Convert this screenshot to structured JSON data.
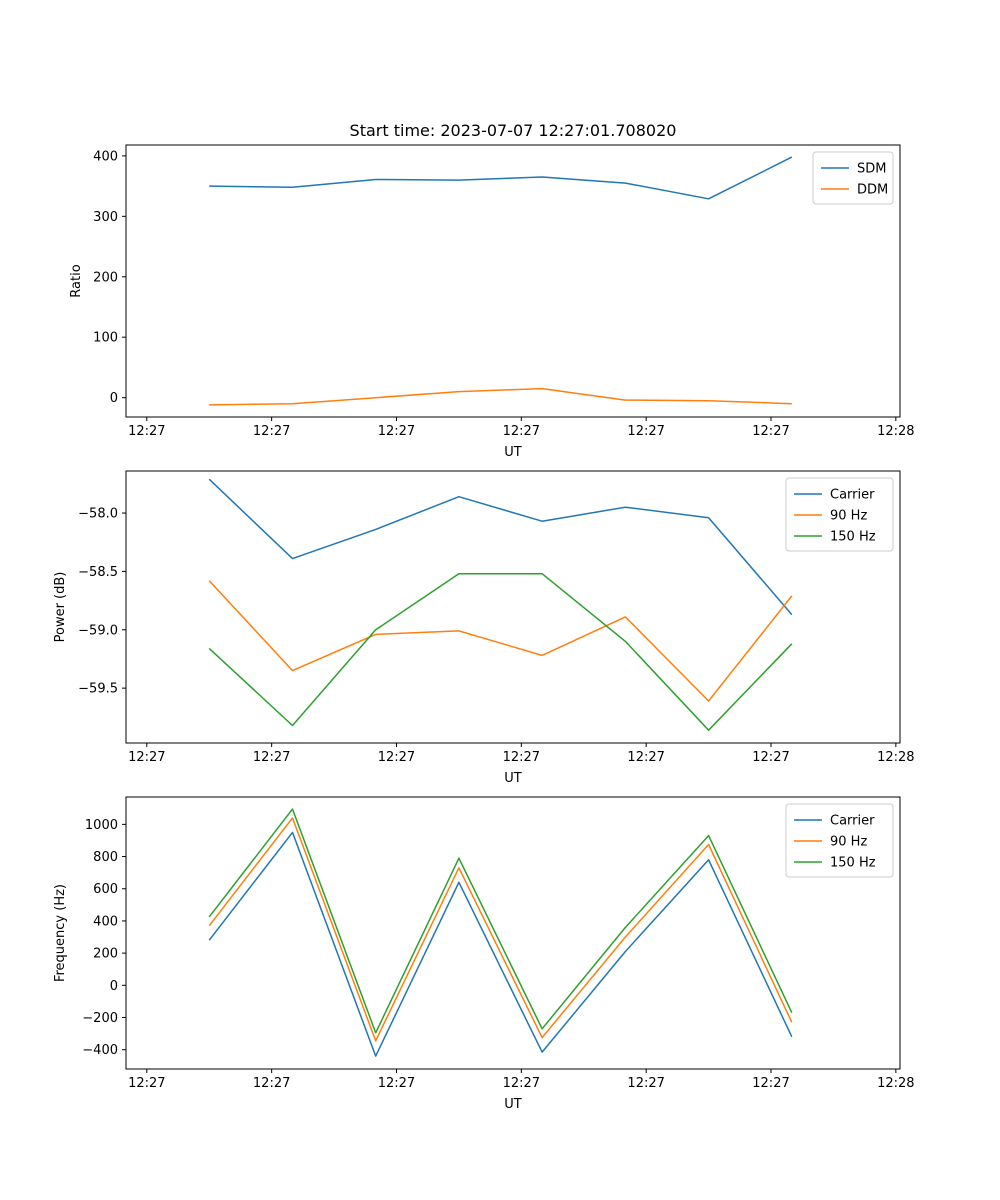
{
  "figure_title": "Start time: 2023-07-07 12:27:01.708020",
  "chart_data": [
    {
      "type": "line",
      "title": "Start time: 2023-07-07 12:27:01.708020",
      "xlabel": "UT",
      "ylabel": "Ratio",
      "x": [
        1,
        2,
        3,
        4,
        5,
        6,
        7,
        8
      ],
      "x_ticks": [
        0.25,
        1.75,
        3.25,
        4.75,
        6.25,
        7.75,
        9.25
      ],
      "x_tick_labels": [
        "12:27",
        "12:27",
        "12:27",
        "12:27",
        "12:27",
        "12:27",
        "12:28"
      ],
      "xlim": [
        0,
        9.3
      ],
      "ylim": [
        -32,
        418
      ],
      "y_ticks": [
        0,
        100,
        200,
        300,
        400
      ],
      "y_tick_labels": [
        "0",
        "100",
        "200",
        "300",
        "400"
      ],
      "legend_position": "top-right",
      "series": [
        {
          "name": "SDM",
          "color": "#1f77b4",
          "values": [
            350,
            348,
            361,
            360,
            365,
            355,
            329,
            398
          ]
        },
        {
          "name": "DDM",
          "color": "#ff7f0e",
          "values": [
            -12,
            -10,
            0,
            10,
            15,
            -4,
            -5,
            -10
          ]
        }
      ]
    },
    {
      "type": "line",
      "title": "",
      "xlabel": "UT",
      "ylabel": "Power (dB)",
      "x": [
        1,
        2,
        3,
        4,
        5,
        6,
        7,
        8
      ],
      "x_ticks": [
        0.25,
        1.75,
        3.25,
        4.75,
        6.25,
        7.75,
        9.25
      ],
      "x_tick_labels": [
        "12:27",
        "12:27",
        "12:27",
        "12:27",
        "12:27",
        "12:27",
        "12:28"
      ],
      "xlim": [
        0,
        9.3
      ],
      "ylim": [
        -59.97,
        -57.64
      ],
      "y_ticks": [
        -58.0,
        -58.5,
        -59.0,
        -59.5
      ],
      "y_tick_labels": [
        "−58.0",
        "−58.5",
        "−59.0",
        "−59.5"
      ],
      "legend_position": "top-right",
      "series": [
        {
          "name": "Carrier",
          "color": "#1f77b4",
          "values": [
            -57.71,
            -58.39,
            -58.14,
            -57.86,
            -58.07,
            -57.95,
            -58.04,
            -58.87
          ]
        },
        {
          "name": "90 Hz",
          "color": "#ff7f0e",
          "values": [
            -58.58,
            -59.35,
            -59.04,
            -59.01,
            -59.22,
            -58.89,
            -59.61,
            -58.71
          ]
        },
        {
          "name": "150 Hz",
          "color": "#2ca02c",
          "values": [
            -59.16,
            -59.82,
            -59.0,
            -58.52,
            -58.52,
            -59.1,
            -59.86,
            -59.12
          ]
        }
      ]
    },
    {
      "type": "line",
      "title": "",
      "xlabel": "UT",
      "ylabel": "Frequency (Hz)",
      "x": [
        1,
        2,
        3,
        4,
        5,
        6,
        7,
        8
      ],
      "x_ticks": [
        0.25,
        1.75,
        3.25,
        4.75,
        6.25,
        7.75,
        9.25
      ],
      "x_tick_labels": [
        "12:27",
        "12:27",
        "12:27",
        "12:27",
        "12:27",
        "12:27",
        "12:28"
      ],
      "xlim": [
        0,
        9.3
      ],
      "ylim": [
        -520,
        1170
      ],
      "y_ticks": [
        -400,
        -200,
        0,
        200,
        400,
        600,
        800,
        1000
      ],
      "y_tick_labels": [
        "−400",
        "−200",
        "0",
        "200",
        "400",
        "600",
        "800",
        "1000"
      ],
      "legend_position": "top-right",
      "series": [
        {
          "name": "Carrier",
          "color": "#1f77b4",
          "values": [
            280,
            950,
            -440,
            640,
            -415,
            210,
            780,
            -320
          ]
        },
        {
          "name": "90 Hz",
          "color": "#ff7f0e",
          "values": [
            370,
            1040,
            -345,
            730,
            -325,
            300,
            875,
            -230
          ]
        },
        {
          "name": "150 Hz",
          "color": "#2ca02c",
          "values": [
            425,
            1095,
            -295,
            790,
            -270,
            360,
            930,
            -170
          ]
        }
      ]
    }
  ]
}
